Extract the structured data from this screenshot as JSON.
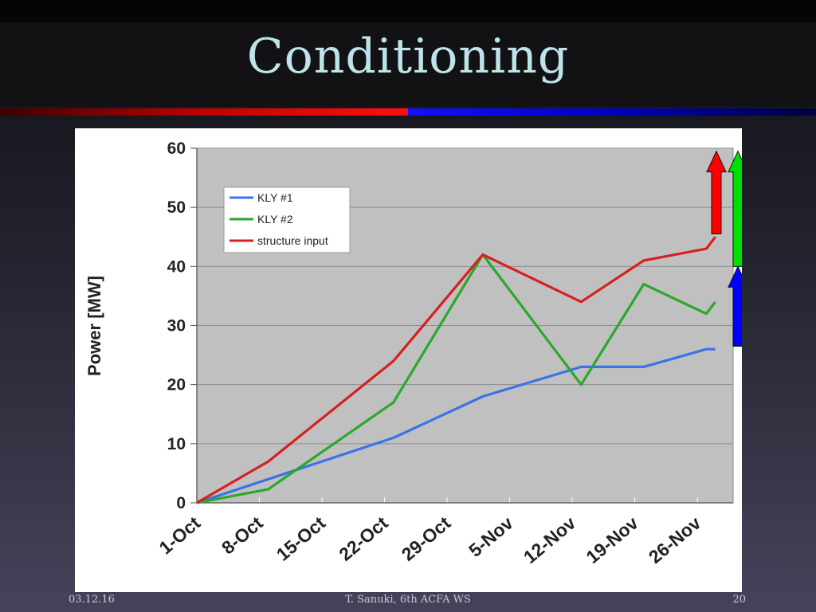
{
  "slide": {
    "title": "Conditioning"
  },
  "footer": {
    "date": "03.12.16",
    "center": "T. Sanuki, 6th ACFA WS",
    "page": "20"
  },
  "colors": {
    "title": "#bfe3ea",
    "plot_bg": "#c0c0c0",
    "kly1": "#3a72e8",
    "kly2": "#2aa82a",
    "structure": "#d62020",
    "arrow_red": "#ff0000",
    "arrow_green": "#00e000",
    "arrow_blue": "#0000ff"
  },
  "chart_data": {
    "type": "line",
    "title": "",
    "xlabel": "",
    "ylabel": "Power [MW]",
    "ylim": [
      0,
      60
    ],
    "yticks": [
      0,
      10,
      20,
      30,
      40,
      50,
      60
    ],
    "x_ticks": [
      "1-Oct",
      "8-Oct",
      "15-Oct",
      "22-Oct",
      "29-Oct",
      "5-Nov",
      "12-Nov",
      "19-Nov",
      "26-Nov"
    ],
    "x_domain": [
      "1-Oct",
      "30-Nov"
    ],
    "grid": "horizontal",
    "legend_position": "top-left",
    "series": [
      {
        "name": "KLY #1",
        "color_key": "kly1",
        "points": [
          [
            "1-Oct",
            0
          ],
          [
            "9-Oct",
            4
          ],
          [
            "23-Oct",
            11
          ],
          [
            "2-Nov",
            18
          ],
          [
            "13-Nov",
            23
          ],
          [
            "20-Nov",
            23
          ],
          [
            "27-Nov",
            26
          ],
          [
            "28-Nov",
            26
          ]
        ]
      },
      {
        "name": "KLY #2",
        "color_key": "kly2",
        "points": [
          [
            "1-Oct",
            0
          ],
          [
            "9-Oct",
            2.3
          ],
          [
            "23-Oct",
            17
          ],
          [
            "2-Nov",
            42
          ],
          [
            "13-Nov",
            20
          ],
          [
            "20-Nov",
            37
          ],
          [
            "27-Nov",
            32
          ],
          [
            "28-Nov",
            34
          ]
        ]
      },
      {
        "name": "structure input",
        "color_key": "structure",
        "points": [
          [
            "1-Oct",
            0
          ],
          [
            "9-Oct",
            7
          ],
          [
            "23-Oct",
            24
          ],
          [
            "2-Nov",
            42
          ],
          [
            "13-Nov",
            34
          ],
          [
            "20-Nov",
            41
          ],
          [
            "27-Nov",
            43
          ],
          [
            "28-Nov",
            45
          ]
        ]
      }
    ],
    "annotations": [
      {
        "shape": "arrow-up",
        "color_key": "arrow_red",
        "from": 45.5,
        "to": 59.5
      },
      {
        "shape": "arrow-up",
        "color_key": "arrow_green",
        "from": 40,
        "to": 59.5
      },
      {
        "shape": "arrow-up",
        "color_key": "arrow_blue",
        "from": 26.5,
        "to": 40
      }
    ]
  }
}
